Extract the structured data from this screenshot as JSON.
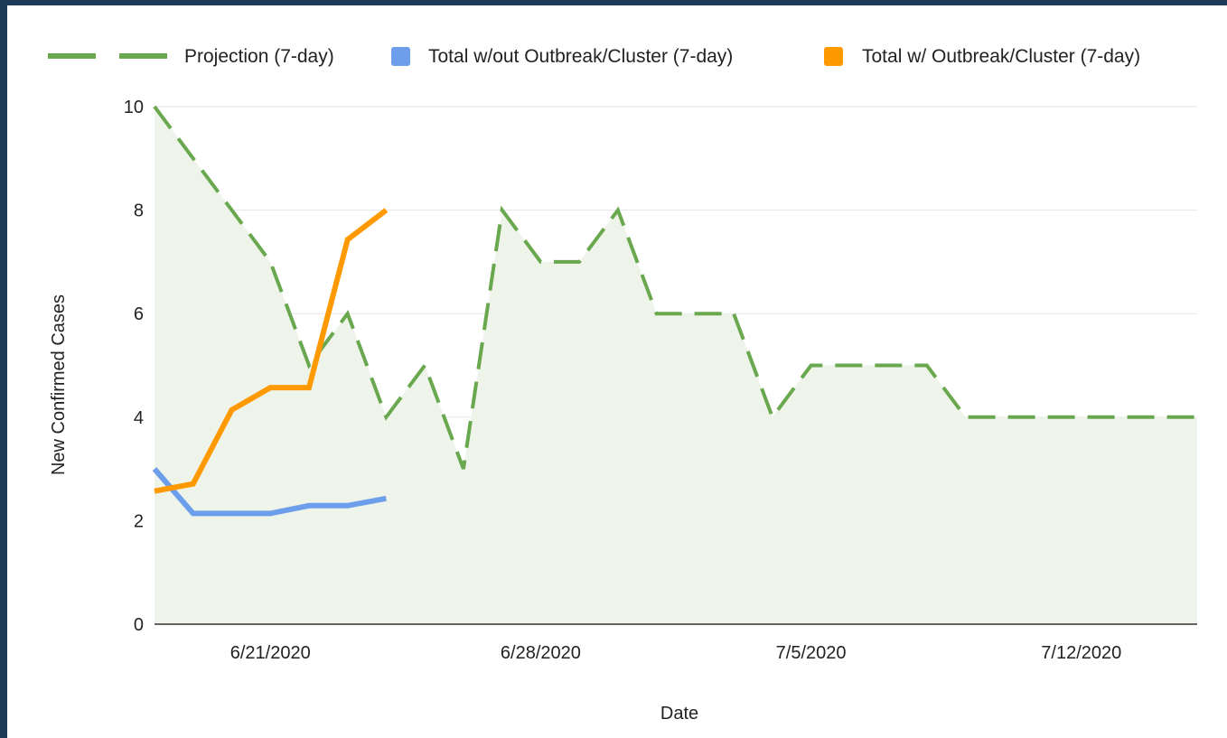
{
  "chart_data": {
    "type": "line",
    "xlabel": "Date",
    "ylabel": "New Confirmed Cases",
    "ylim": [
      0,
      10
    ],
    "yticks": [
      "0",
      "2",
      "4",
      "6",
      "8",
      "10"
    ],
    "x_range": [
      "6/18/2020",
      "7/15/2020"
    ],
    "xticks": [
      "6/21/2020",
      "6/28/2020",
      "7/5/2020",
      "7/12/2020"
    ],
    "grid": true,
    "legend_position": "top",
    "series": [
      {
        "name": "Projection (7-day)",
        "style": "dashed",
        "fill": true,
        "color": "#6aa84f",
        "fill_color": "#eef4ea",
        "x": [
          "6/18/2020",
          "6/19/2020",
          "6/20/2020",
          "6/21/2020",
          "6/22/2020",
          "6/23/2020",
          "6/24/2020",
          "6/25/2020",
          "6/26/2020",
          "6/27/2020",
          "6/28/2020",
          "6/29/2020",
          "6/30/2020",
          "7/1/2020",
          "7/2/2020",
          "7/3/2020",
          "7/4/2020",
          "7/5/2020",
          "7/6/2020",
          "7/7/2020",
          "7/8/2020",
          "7/9/2020",
          "7/10/2020",
          "7/11/2020",
          "7/12/2020",
          "7/13/2020",
          "7/14/2020",
          "7/15/2020"
        ],
        "values": [
          10,
          9,
          8,
          7,
          5,
          6,
          4,
          5,
          3,
          8,
          7,
          7,
          8,
          6,
          6,
          6,
          4,
          5,
          5,
          5,
          5,
          4,
          4,
          4,
          4,
          4,
          4,
          4
        ]
      },
      {
        "name": "Total w/out Outbreak/Cluster (7-day)",
        "style": "solid",
        "color": "#6d9eeb",
        "x": [
          "6/18/2020",
          "6/19/2020",
          "6/20/2020",
          "6/21/2020",
          "6/22/2020",
          "6/23/2020",
          "6/24/2020"
        ],
        "values": [
          3.0,
          2.14,
          2.14,
          2.14,
          2.29,
          2.29,
          2.43
        ]
      },
      {
        "name": "Total w/ Outbreak/Cluster (7-day)",
        "style": "solid",
        "color": "#ff9900",
        "x": [
          "6/18/2020",
          "6/19/2020",
          "6/20/2020",
          "6/21/2020",
          "6/22/2020",
          "6/23/2020",
          "6/24/2020"
        ],
        "values": [
          2.57,
          2.71,
          4.14,
          4.57,
          4.57,
          7.43,
          8.0
        ]
      }
    ]
  }
}
